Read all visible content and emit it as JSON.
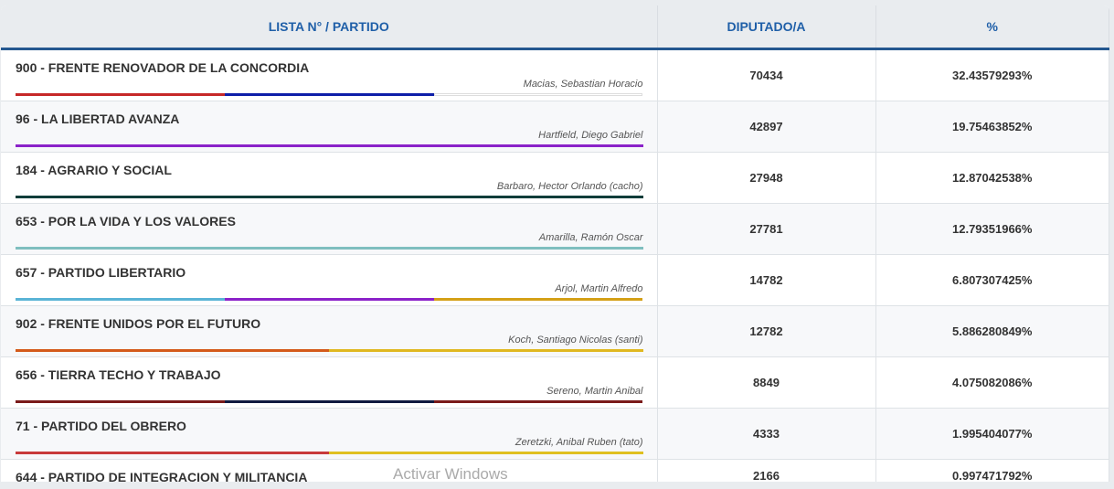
{
  "header": {
    "party": "LISTA N° / PARTIDO",
    "votes": "DIPUTADO/A",
    "pct": "%"
  },
  "rows": [
    {
      "party": "900 - FRENTE RENOVADOR DE LA CONCORDIA",
      "candidate": "Macias, Sebastian Horacio",
      "votes": "70434",
      "pct": "32.43579293%",
      "colors": [
        "#c62828",
        "#0d1ea8",
        "#ffffff"
      ]
    },
    {
      "party": "96 - LA LIBERTAD AVANZA",
      "candidate": "Hartfield, Diego Gabriel",
      "votes": "42897",
      "pct": "19.75463852%",
      "colors": [
        "#8b22c9"
      ]
    },
    {
      "party": "184 - AGRARIO Y SOCIAL",
      "candidate": "Barbaro, Hector Orlando (cacho)",
      "votes": "27948",
      "pct": "12.87042538%",
      "colors": [
        "#0f3d3a"
      ]
    },
    {
      "party": "653 - POR LA VIDA Y LOS VALORES",
      "candidate": "Amarilla, Ramón Oscar",
      "votes": "27781",
      "pct": "12.79351966%",
      "colors": [
        "#7fbfbf"
      ]
    },
    {
      "party": "657 - PARTIDO LIBERTARIO",
      "candidate": "Arjol, Martin Alfredo",
      "votes": "14782",
      "pct": "6.807307425%",
      "colors": [
        "#5ab4d6",
        "#8b22c9",
        "#d4a017"
      ]
    },
    {
      "party": "902 - FRENTE UNIDOS POR EL FUTURO",
      "candidate": "Koch, Santiago Nicolas (santi)",
      "votes": "12782",
      "pct": "5.886280849%",
      "colors": [
        "#d45a1a",
        "#e0b820"
      ]
    },
    {
      "party": "656 - TIERRA TECHO Y TRABAJO",
      "candidate": "Sereno, Martin Anibal",
      "votes": "8849",
      "pct": "4.075082086%",
      "colors": [
        "#7a1a1a",
        "#101a40",
        "#7a1a1a"
      ]
    },
    {
      "party": "71 - PARTIDO DEL OBRERO",
      "candidate": "Zeretzki, Anibal Ruben (tato)",
      "votes": "4333",
      "pct": "1.995404077%",
      "colors": [
        "#c83a3a",
        "#e0c020"
      ]
    },
    {
      "party": "644 - PARTIDO DE INTEGRACION Y MILITANCIA",
      "candidate": "",
      "votes": "2166",
      "pct": "0.997471792%",
      "colors": []
    }
  ],
  "watermark": "Activar Windows"
}
